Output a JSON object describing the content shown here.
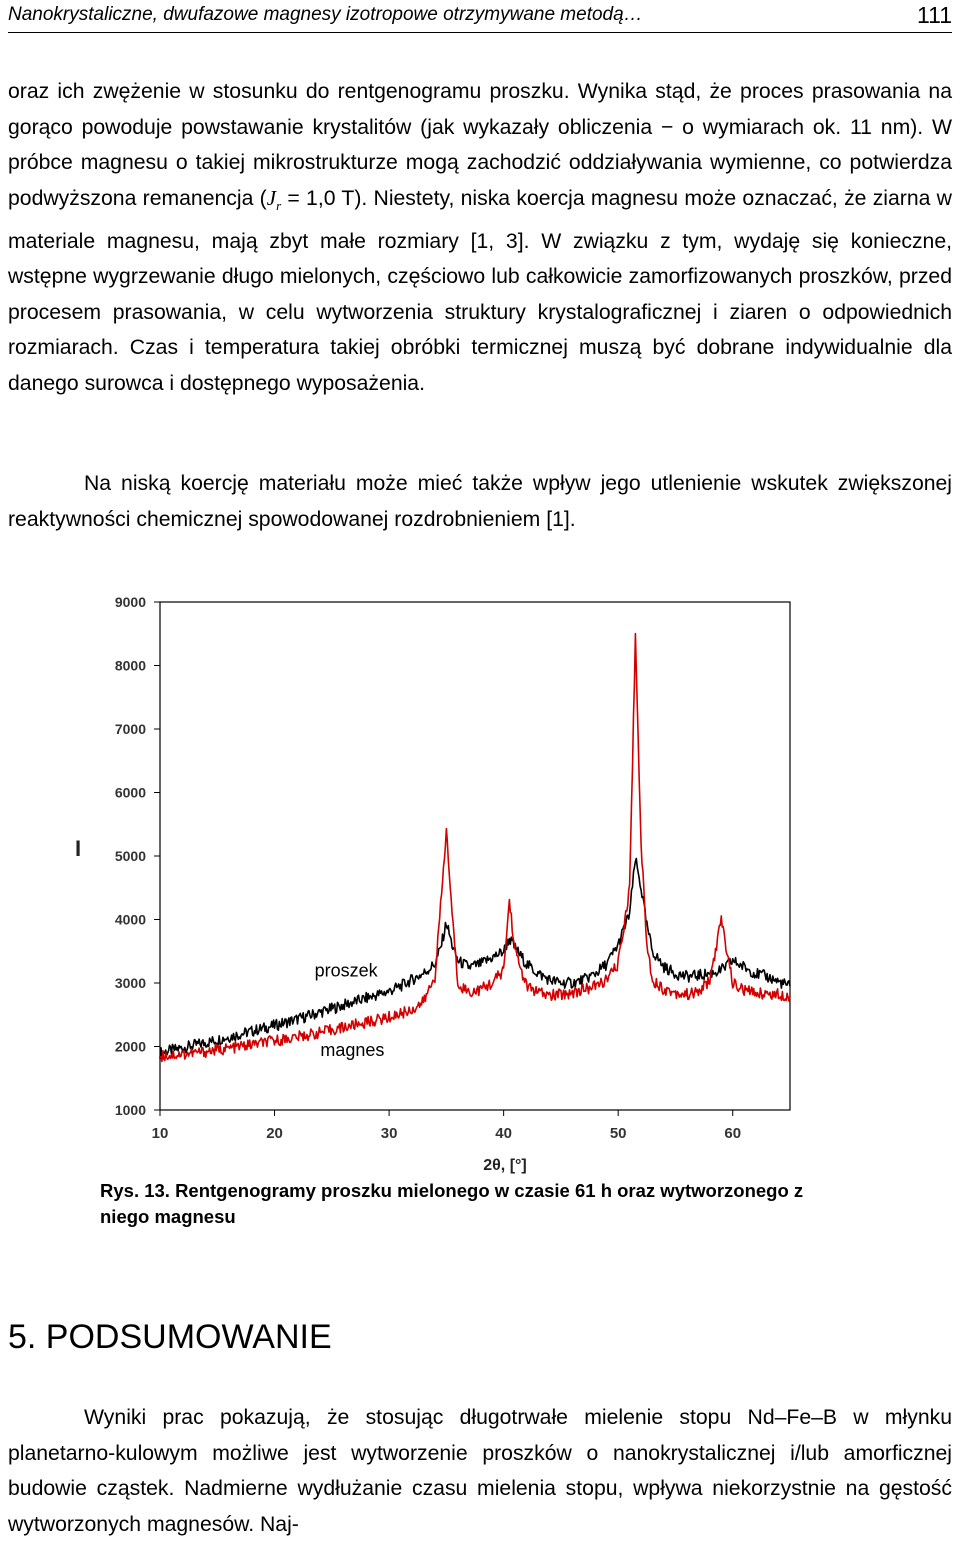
{
  "header": {
    "title": "Nanokrystaliczne, dwufazowe magnesy izotropowe otrzymywane metodą…",
    "page_number": "111"
  },
  "body": {
    "p1_part1": "oraz ich zwężenie w stosunku do rentgenogramu proszku. Wynika stąd, że proces prasowania na gorąco powoduje powstawanie krystalitów (jak wykazały obliczenia − o wymiarach ok. 11 nm). W próbce magnesu o takiej mikrostrukturze mogą zachodzić oddziaływania wymienne, co potwierdza podwyższona remanencja (",
    "p1_sym": "J",
    "p1_sub": "r",
    "p1_part2": " = 1,0 T). Niestety, niska koercja magnesu może oznaczać, że ziarna w materiale magnesu, mają zbyt małe rozmiary [1, 3]. W związku z tym, wydaję się konieczne, wstępne wygrzewanie długo mielonych, częściowo lub całkowicie zamorfizowanych proszków, przed procesem prasowania, w celu wytworzenia struktury krystalograficznej i ziaren o odpowiednich rozmiarach. Czas i temperatura takiej obróbki termicznej muszą być dobrane indywidualnie dla danego surowca i dostępnego wyposażenia.",
    "p2": "Na niską koercję materiału może mieć także wpływ jego utlenienie wskutek zwiększonej reaktywności chemicznej spowodowanej rozdrobnieniem [1].",
    "caption": "Rys. 13. Rentgenogramy proszku mielonego w czasie 61 h oraz wytworzonego z niego magnesu",
    "section_title": "5. PODSUMOWANIE",
    "p3": "Wyniki prac pokazują, że stosując długotrwałe mielenie stopu Nd–Fe–B w młynku planetarno-kulowym możliwe jest wytworzenie proszków o nanokrystalicznej i/lub amorficznej budowie cząstek. Nadmierne wydłużanie czasu mielenia stopu, wpływa niekorzystnie na gęstość wytworzonych magnesów. Naj-"
  },
  "chart_data": {
    "type": "line",
    "xlabel": "2θ, [°]",
    "ylabel": "I",
    "xlim": [
      10,
      65
    ],
    "ylim": [
      1000,
      9000
    ],
    "xticks": [
      10,
      20,
      30,
      40,
      50,
      60
    ],
    "yticks": [
      1000,
      2000,
      3000,
      4000,
      5000,
      6000,
      7000,
      8000,
      9000
    ],
    "grid": false,
    "series": [
      {
        "name": "proszek",
        "color": "#000000",
        "x": [
          10,
          12,
          14,
          16,
          18,
          20,
          22,
          24,
          26,
          28,
          30,
          31,
          32,
          33,
          34,
          34.5,
          35,
          35.5,
          36,
          37,
          38,
          39,
          40,
          40.5,
          41,
          42,
          43,
          44,
          45,
          46,
          47,
          48,
          49,
          50,
          51,
          51.5,
          52,
          52.5,
          53,
          54,
          55,
          56,
          57,
          58,
          59,
          60,
          61,
          62,
          63,
          64,
          65
        ],
        "y": [
          1900,
          1980,
          2060,
          2150,
          2240,
          2330,
          2430,
          2540,
          2650,
          2760,
          2870,
          2950,
          3050,
          3150,
          3300,
          3550,
          3950,
          3600,
          3350,
          3250,
          3300,
          3400,
          3500,
          3700,
          3550,
          3300,
          3150,
          3050,
          3000,
          3000,
          3050,
          3150,
          3300,
          3600,
          4100,
          4950,
          4500,
          3900,
          3500,
          3250,
          3150,
          3100,
          3120,
          3150,
          3200,
          3350,
          3250,
          3150,
          3100,
          3020,
          2950
        ]
      },
      {
        "name": "magnes",
        "color": "#d40000",
        "x": [
          10,
          12,
          14,
          16,
          18,
          20,
          22,
          24,
          26,
          28,
          30,
          32,
          33,
          34,
          34.5,
          35,
          35.5,
          36,
          37,
          38,
          39,
          40,
          40.5,
          41,
          42,
          43,
          44,
          45,
          46,
          47,
          48,
          49,
          50,
          51,
          51.5,
          52,
          52.5,
          53,
          54,
          55,
          56,
          57,
          58,
          58.5,
          59,
          59.5,
          60,
          61,
          62,
          63,
          64,
          65
        ],
        "y": [
          1850,
          1880,
          1920,
          1970,
          2030,
          2090,
          2150,
          2220,
          2300,
          2380,
          2460,
          2580,
          2700,
          3100,
          4200,
          5400,
          4100,
          3000,
          2850,
          2900,
          3000,
          3200,
          4300,
          3500,
          2950,
          2850,
          2800,
          2820,
          2850,
          2900,
          2950,
          3050,
          3300,
          4500,
          8450,
          5200,
          3600,
          3050,
          2900,
          2850,
          2820,
          2850,
          3050,
          3500,
          4000,
          3500,
          3000,
          2880,
          2850,
          2830,
          2820,
          2800
        ]
      }
    ],
    "annotations": [
      {
        "text": "proszek",
        "x": 23.5,
        "y": 3100,
        "color": "#000000"
      },
      {
        "text": "magnes",
        "x": 24,
        "y": 1850,
        "color": "#000000"
      }
    ]
  }
}
